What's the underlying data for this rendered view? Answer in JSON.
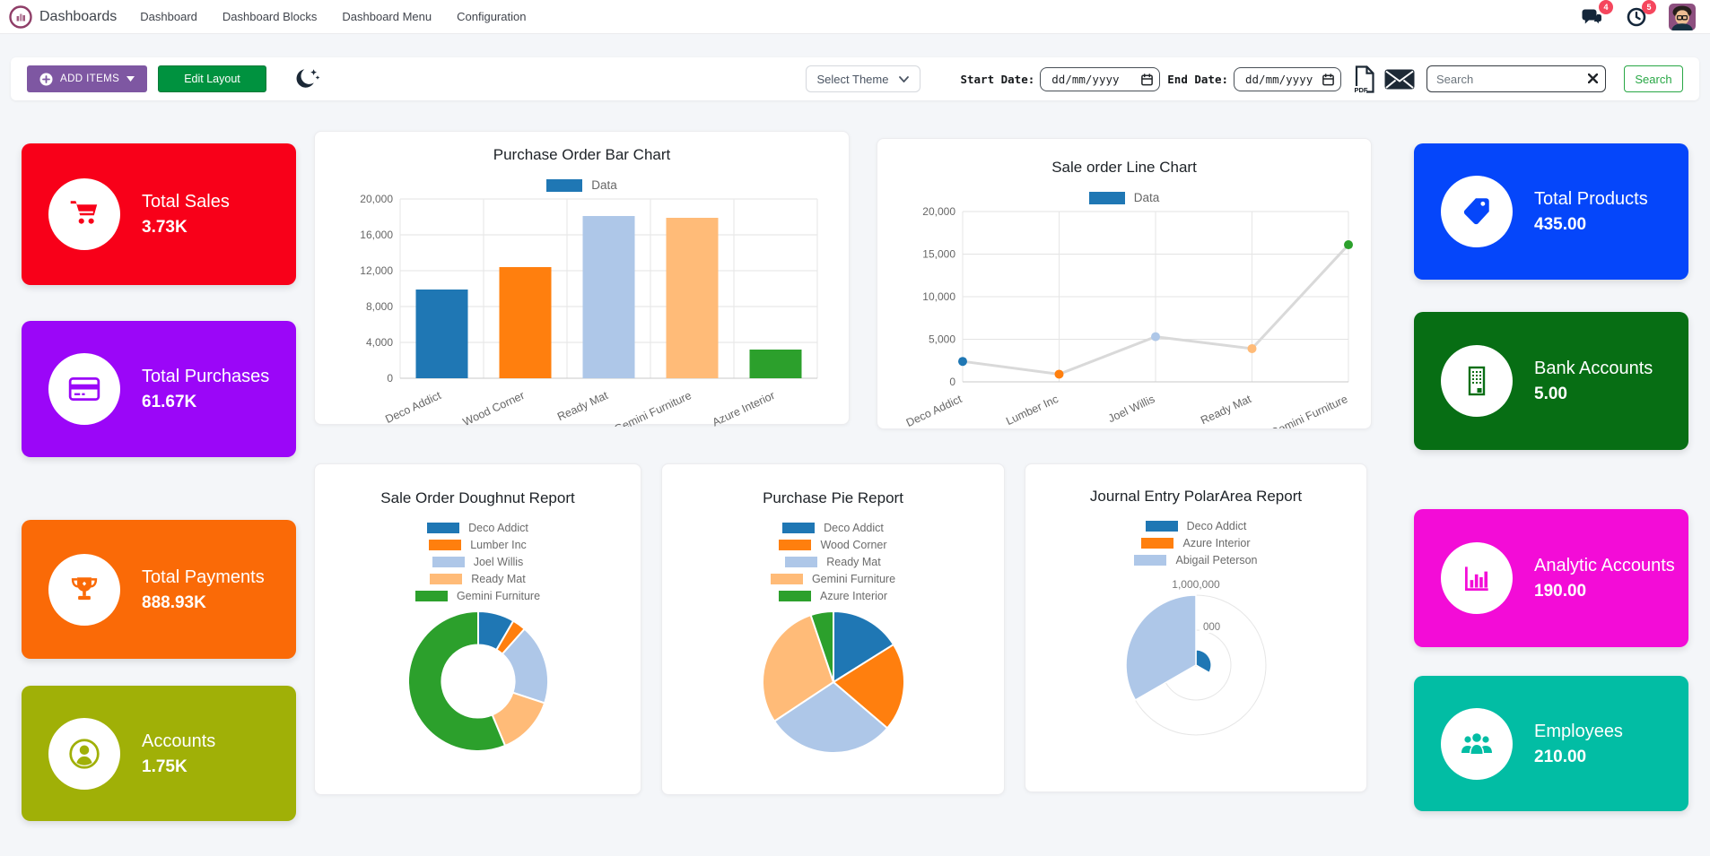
{
  "navbar": {
    "brand": "Dashboards",
    "menu": [
      "Dashboard",
      "Dashboard Blocks",
      "Dashboard Menu",
      "Configuration"
    ],
    "messages_badge": "4",
    "activities_badge": "5"
  },
  "toolbar": {
    "add_items_label": "ADD ITEMS",
    "edit_layout_label": "Edit Layout",
    "select_theme_label": "Select Theme",
    "start_date_label": "Start Date:",
    "end_date_label": "End Date:",
    "date_placeholder": "dd/mm/yyyy",
    "pdf_icon_label": "PDF",
    "search_placeholder": "Search",
    "search_button_label": "Search",
    "search_value": ""
  },
  "kpi": {
    "left": [
      {
        "title": "Total Sales",
        "value": "3.73K",
        "color": "#f80019",
        "icon": "cart"
      },
      {
        "title": "Total Purchases",
        "value": "61.67K",
        "color": "#9b06f8",
        "icon": "credit-card"
      },
      {
        "title": "Total Payments",
        "value": "888.93K",
        "color": "#fa6a07",
        "icon": "trophy"
      },
      {
        "title": "Accounts",
        "value": "1.75K",
        "color": "#a0b007",
        "icon": "person"
      }
    ],
    "right": [
      {
        "title": "Total Products",
        "value": "435.00",
        "color": "#0546fa",
        "icon": "tag"
      },
      {
        "title": "Bank Accounts",
        "value": "5.00",
        "color": "#076e14",
        "icon": "building"
      },
      {
        "title": "Analytic Accounts",
        "value": "190.00",
        "color": "#f30cd7",
        "icon": "bar-chart"
      },
      {
        "title": "Employees",
        "value": "210.00",
        "color": "#02bda4",
        "icon": "people"
      }
    ]
  },
  "palette": [
    "#1f77b4",
    "#ff7f0e",
    "#aec7e8",
    "#ffbb78",
    "#2ca02c"
  ],
  "chart_data": [
    {
      "type": "bar",
      "title": "Purchase Order Bar Chart",
      "legend_label": "Data",
      "categories": [
        "Deco Addict",
        "Wood Corner",
        "Ready Mat",
        "Gemini Furniture",
        "Azure Interior"
      ],
      "values": [
        9900,
        12400,
        18100,
        17900,
        3200
      ],
      "bar_colors": [
        "#1f77b4",
        "#ff7f0e",
        "#aec7e8",
        "#ffbb78",
        "#2ca02c"
      ],
      "ylim": [
        0,
        20000
      ],
      "ytick_step": 4000,
      "grid": true,
      "legend_position": "top"
    },
    {
      "type": "line",
      "title": "Sale order Line Chart",
      "legend_label": "Data",
      "categories": [
        "Deco Addict",
        "Lumber Inc",
        "Joel Willis",
        "Ready Mat",
        "Gemini Furniture"
      ],
      "values": [
        2400,
        900,
        5300,
        3900,
        16100
      ],
      "point_colors": [
        "#1f77b4",
        "#ff7f0e",
        "#aec7e8",
        "#ffbb78",
        "#2ca02c"
      ],
      "line_color": "#d9d9d9",
      "ylim": [
        0,
        20000
      ],
      "ytick_step": 5000,
      "grid": true,
      "legend_position": "top"
    },
    {
      "type": "doughnut",
      "title": "Sale Order Doughnut Report",
      "labels": [
        "Deco Addict",
        "Lumber Inc",
        "Joel Willis",
        "Ready Mat",
        "Gemini Furniture"
      ],
      "values": [
        2400,
        900,
        5300,
        3900,
        16100
      ],
      "colors": [
        "#1f77b4",
        "#ff7f0e",
        "#aec7e8",
        "#ffbb78",
        "#2ca02c"
      ],
      "legend_position": "top"
    },
    {
      "type": "pie",
      "title": "Purchase Pie Report",
      "labels": [
        "Deco Addict",
        "Wood Corner",
        "Ready Mat",
        "Gemini Furniture",
        "Azure Interior"
      ],
      "values": [
        9900,
        12400,
        18100,
        17900,
        3200
      ],
      "colors": [
        "#1f77b4",
        "#ff7f0e",
        "#aec7e8",
        "#ffbb78",
        "#2ca02c"
      ],
      "legend_position": "top"
    },
    {
      "type": "polarArea",
      "title": "Journal Entry PolarArea Report",
      "labels": [
        "Deco Addict",
        "Azure Interior",
        "Abigail Peterson"
      ],
      "values": [
        220000,
        25000,
        1000000
      ],
      "colors": [
        "#1f77b4",
        "#ff7f0e",
        "#aec7e8"
      ],
      "rmax": 1000000,
      "tick_labels": [
        "1,000,000",
        "000"
      ],
      "legend_position": "top"
    }
  ]
}
